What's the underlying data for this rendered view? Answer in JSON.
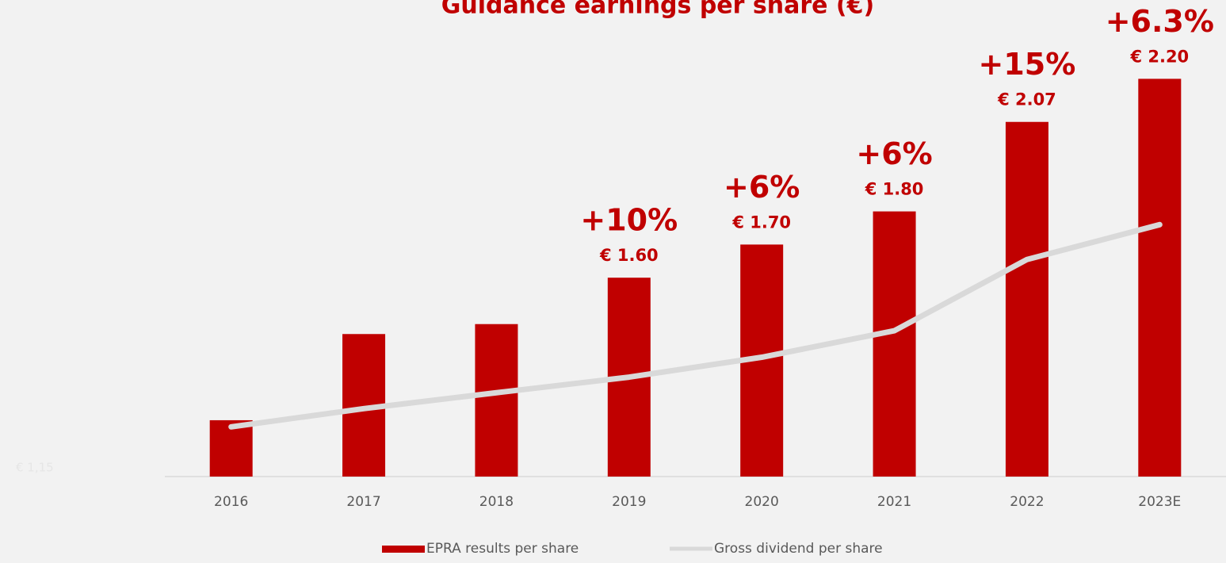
{
  "chart_data": {
    "type": "bar",
    "title": "Guidance earnings per share (€)",
    "categories": [
      "2016",
      "2017",
      "2018",
      "2019",
      "2020",
      "2021",
      "2022",
      "2023E"
    ],
    "series": [
      {
        "name": "EPRA results per share",
        "color": "#c00000",
        "type": "bar",
        "values": [
          1.17,
          1.43,
          1.46,
          1.6,
          1.7,
          1.8,
          2.07,
          2.2
        ],
        "value_labels": [
          null,
          null,
          null,
          "€ 1.60",
          "€ 1.70",
          "€ 1.80",
          "€ 2.07",
          "€ 2.20"
        ],
        "growth_labels": [
          null,
          null,
          null,
          "+10%",
          "+6%",
          "+6%",
          "+15%",
          "+6.3%"
        ]
      },
      {
        "name": "Gross dividend per share",
        "color": "#d9d9d9",
        "type": "line",
        "values": [
          1.15,
          1.205,
          1.253,
          1.3,
          1.36,
          1.44,
          1.655,
          1.76
        ]
      }
    ],
    "annotations": [
      "€ 1,15"
    ],
    "ylim": [
      1.0,
      2.3
    ]
  }
}
